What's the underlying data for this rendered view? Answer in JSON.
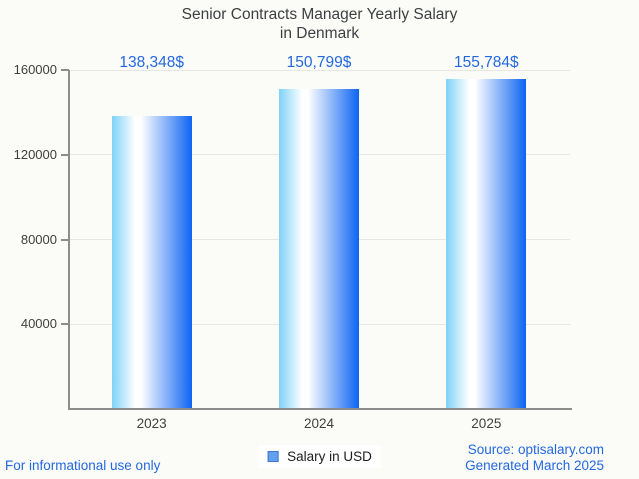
{
  "title": {
    "line1": "Senior Contracts Manager Yearly Salary",
    "line2": "in Denmark"
  },
  "chart_data": {
    "type": "bar",
    "title": "Senior Contracts Manager Yearly Salary in Denmark",
    "categories": [
      "2023",
      "2024",
      "2025"
    ],
    "values": [
      138348,
      150799,
      155784
    ],
    "value_labels": [
      "138,348$",
      "150,799$",
      "155,784$"
    ],
    "series": [
      {
        "name": "Salary in USD",
        "values": [
          138348,
          150799,
          155784
        ]
      }
    ],
    "xlabel": "",
    "ylabel": "",
    "ylim": [
      0,
      160000
    ],
    "yticks": [
      40000,
      80000,
      120000,
      160000
    ],
    "ytick_labels": [
      "40000",
      "80000",
      "120000",
      "160000"
    ],
    "grid": true,
    "legend_position": "bottom",
    "bar_gradient": [
      "#7ed2f8",
      "#ffffff",
      "#0d64f2"
    ]
  },
  "legend": {
    "label": "Salary in USD",
    "marker_fill": "#63a1ee",
    "marker_border": "#3f74c9"
  },
  "footer": {
    "disclaimer": "For informational use only",
    "source": "Source: optisalary.com",
    "generated": "Generated March 2025"
  },
  "colors": {
    "accent_blue": "#2468e0",
    "title_text": "#3d4043",
    "axis_text": "#3f3f3f",
    "axis_line": "#8c8c8c",
    "gridline": "#e7e7e4",
    "background": "#fbfbf8"
  }
}
